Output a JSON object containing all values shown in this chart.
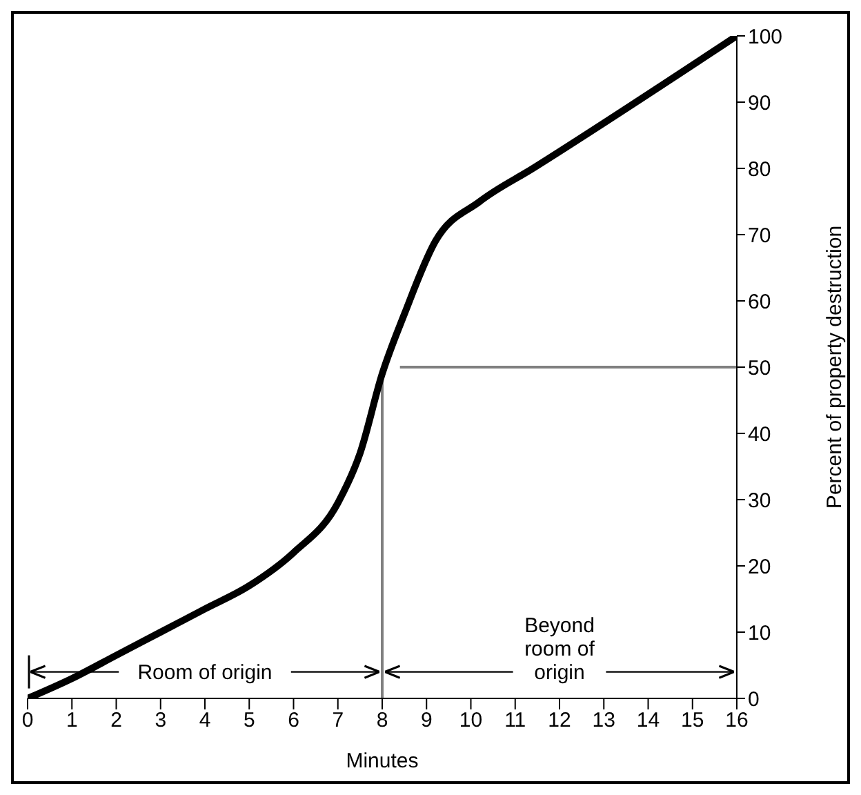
{
  "chart_data": {
    "type": "line",
    "xlabel": "Minutes",
    "ylabel": "Percent of property destruction",
    "x": [
      0,
      1,
      2,
      3,
      4,
      5,
      6,
      7,
      7.5,
      8,
      8.5,
      9.2,
      10.2,
      11.4,
      16
    ],
    "series": [
      {
        "color": "#000000",
        "values": [
          0,
          3,
          6.5,
          10,
          13.5,
          17,
          22,
          29.5,
          37,
          49,
          58,
          69,
          75,
          80,
          100
        ]
      }
    ],
    "xlim": [
      0,
      16
    ],
    "xticks": [
      0,
      1,
      2,
      3,
      4,
      5,
      6,
      7,
      8,
      9,
      10,
      11,
      12,
      13,
      14,
      15,
      16
    ],
    "ylim": [
      0,
      100
    ],
    "yticks": [
      0,
      10,
      20,
      30,
      40,
      50,
      60,
      70,
      80,
      90,
      100
    ],
    "ref_lines": [
      {
        "axis": "x",
        "value": 8,
        "color": "#808080"
      },
      {
        "axis": "y",
        "value": 50,
        "color": "#808080"
      }
    ],
    "annotations": [
      {
        "text": "Room of origin",
        "x": 8,
        "y": 4
      },
      {
        "text": "Beyond room of origin",
        "x": 8,
        "y": 4
      }
    ],
    "marker": "none",
    "line_style": "solid"
  }
}
